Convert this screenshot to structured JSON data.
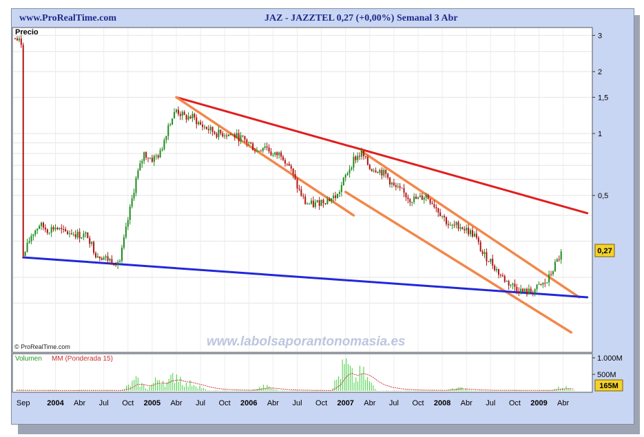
{
  "header": {
    "site": "www.ProRealTime.com",
    "quote": "JAZ - JAZZTEL    0,27 (+0,00%)    Semanal  3 Abr"
  },
  "price_panel": {
    "label": "Precio",
    "copyright": "© ProRealTime.com",
    "watermark": "www.labolsaporantonomasia.es",
    "last_price_badge": "0,27"
  },
  "volume_panel": {
    "label_volume": "Volumen",
    "label_mm": "MM (Ponderada 15)",
    "last_volume_badge": "165M"
  },
  "colors": {
    "up_candle": "#1a8a1a",
    "down_candle": "#b01010",
    "red_line": "#e21d1d",
    "orange_line": "#f2874a",
    "blue_line": "#2127d8",
    "volume_bars": "#3ccf3c",
    "mm_line": "#d23c3c",
    "badge": "#f4d22a"
  },
  "chart_data": {
    "type": "candlestick",
    "scale": "log",
    "y_ticks": [
      "3",
      "2",
      "1,5",
      "1",
      "0,5"
    ],
    "y_tick_values": [
      3,
      2,
      1.5,
      1,
      0.5
    ],
    "x_labels": [
      "Sep",
      "2004",
      "Abr",
      "Jul",
      "Oct",
      "2005",
      "Abr",
      "Jul",
      "Oct",
      "2006",
      "Abr",
      "Jul",
      "Oct",
      "2007",
      "Abr",
      "Jul",
      "Oct",
      "2008",
      "Abr",
      "Jul",
      "Oct",
      "2009",
      "Abr"
    ],
    "volume_ticks": [
      "1.000M",
      "500M"
    ],
    "price_path": [
      [
        "2003-08",
        2.9
      ],
      [
        "2003-09",
        2.7
      ],
      [
        "2003-09",
        0.25
      ],
      [
        "2003-10",
        0.32
      ],
      [
        "2003-11",
        0.36
      ],
      [
        "2003-12",
        0.34
      ],
      [
        "2004-01",
        0.35
      ],
      [
        "2004-02",
        0.33
      ],
      [
        "2004-03",
        0.33
      ],
      [
        "2004-04",
        0.32
      ],
      [
        "2004-05",
        0.32
      ],
      [
        "2004-06",
        0.26
      ],
      [
        "2004-07",
        0.25
      ],
      [
        "2004-08",
        0.24
      ],
      [
        "2004-09",
        0.24
      ],
      [
        "2004-10",
        0.38
      ],
      [
        "2004-11",
        0.6
      ],
      [
        "2004-12",
        0.8
      ],
      [
        "2005-01",
        0.75
      ],
      [
        "2005-02",
        0.8
      ],
      [
        "2005-03",
        1.1
      ],
      [
        "2005-04",
        1.3
      ],
      [
        "2005-05",
        1.2
      ],
      [
        "2005-06",
        1.2
      ],
      [
        "2005-07",
        1.1
      ],
      [
        "2005-08",
        1.05
      ],
      [
        "2005-09",
        1.0
      ],
      [
        "2005-10",
        1.0
      ],
      [
        "2005-11",
        0.98
      ],
      [
        "2005-12",
        0.95
      ],
      [
        "2006-01",
        0.9
      ],
      [
        "2006-02",
        0.82
      ],
      [
        "2006-03",
        0.88
      ],
      [
        "2006-04",
        0.78
      ],
      [
        "2006-05",
        0.8
      ],
      [
        "2006-06",
        0.7
      ],
      [
        "2006-07",
        0.55
      ],
      [
        "2006-08",
        0.46
      ],
      [
        "2006-09",
        0.45
      ],
      [
        "2006-10",
        0.47
      ],
      [
        "2006-11",
        0.48
      ],
      [
        "2006-12",
        0.5
      ],
      [
        "2007-01",
        0.62
      ],
      [
        "2007-02",
        0.75
      ],
      [
        "2007-03",
        0.8
      ],
      [
        "2007-04",
        0.68
      ],
      [
        "2007-05",
        0.67
      ],
      [
        "2007-06",
        0.63
      ],
      [
        "2007-07",
        0.55
      ],
      [
        "2007-08",
        0.52
      ],
      [
        "2007-09",
        0.48
      ],
      [
        "2007-10",
        0.48
      ],
      [
        "2007-11",
        0.5
      ],
      [
        "2007-12",
        0.45
      ],
      [
        "2008-01",
        0.4
      ],
      [
        "2008-02",
        0.35
      ],
      [
        "2008-03",
        0.36
      ],
      [
        "2008-04",
        0.34
      ],
      [
        "2008-05",
        0.32
      ],
      [
        "2008-06",
        0.26
      ],
      [
        "2008-07",
        0.24
      ],
      [
        "2008-08",
        0.21
      ],
      [
        "2008-09",
        0.19
      ],
      [
        "2008-10",
        0.18
      ],
      [
        "2008-11",
        0.17
      ],
      [
        "2008-12",
        0.17
      ],
      [
        "2009-01",
        0.18
      ],
      [
        "2009-02",
        0.19
      ],
      [
        "2009-03",
        0.23
      ],
      [
        "2009-04",
        0.27
      ]
    ],
    "volume_peaks_M": [
      [
        "2004-11",
        380
      ],
      [
        "2005-02",
        520
      ],
      [
        "2005-04",
        660
      ],
      [
        "2005-06",
        320
      ],
      [
        "2006-03",
        180
      ],
      [
        "2007-01",
        1000
      ],
      [
        "2007-03",
        700
      ],
      [
        "2008-03",
        120
      ],
      [
        "2009-04",
        165
      ]
    ],
    "trendlines": [
      {
        "name": "",
        "color": "red",
        "from": [
          "2005-04",
          1.5
        ],
        "to": [
          "2009-07",
          0.41
        ]
      },
      {
        "name": "",
        "color": "orange",
        "from": [
          "2005-04",
          1.5
        ],
        "to": [
          "2007-02",
          0.4
        ]
      },
      {
        "name": "",
        "color": "orange",
        "from": [
          "2007-03",
          0.82
        ],
        "to": [
          "2009-06",
          0.16
        ]
      },
      {
        "name": "",
        "color": "orange",
        "from": [
          "2007-01",
          0.52
        ],
        "to": [
          "2009-05",
          0.108
        ]
      },
      {
        "name": "",
        "color": "blue",
        "from": [
          "2003-09",
          0.25
        ],
        "to": [
          "2009-07",
          0.16
        ]
      }
    ]
  }
}
